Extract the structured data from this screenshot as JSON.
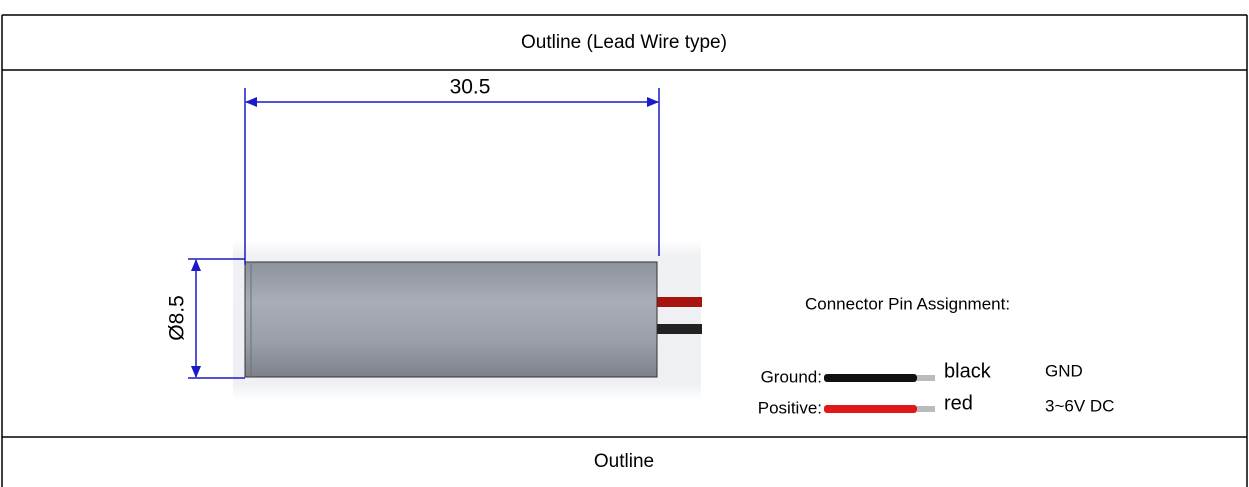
{
  "header": {
    "title": "Outline (Lead Wire type)"
  },
  "drawing": {
    "length_label": "30.5",
    "diameter_label": "Ø8.5"
  },
  "pins": {
    "title": "Connector Pin Assignment:",
    "rows": [
      {
        "label": "Ground:",
        "wire": "black",
        "signal": "GND"
      },
      {
        "label": "Positive:",
        "wire": "red",
        "signal": "3~6V DC"
      }
    ]
  },
  "footer": {
    "caption": "Outline"
  }
}
